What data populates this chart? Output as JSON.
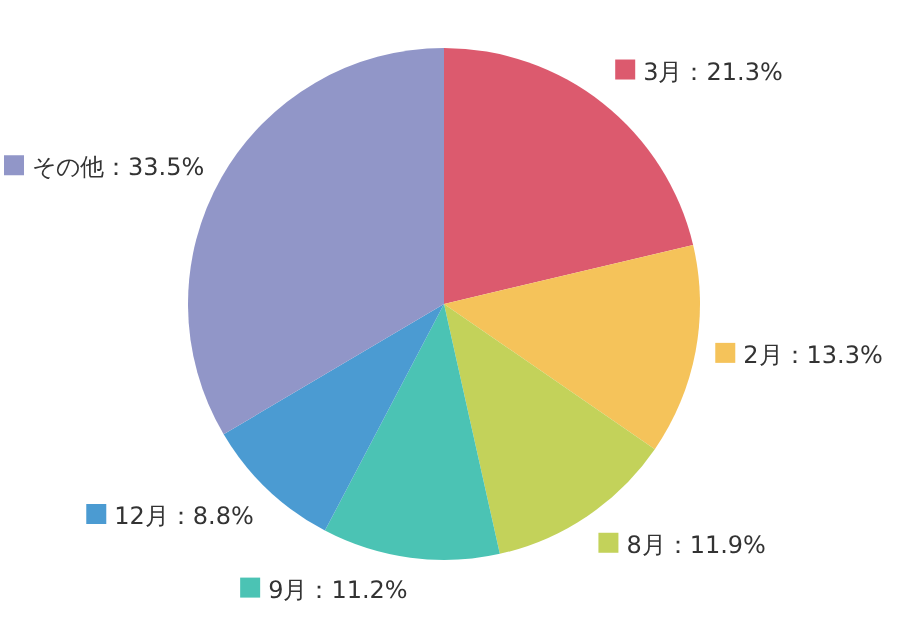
{
  "chart_data": {
    "type": "pie",
    "legend": "right",
    "categories": [
      "3月",
      "2月",
      "8月",
      "9月",
      "12月",
      "その他"
    ],
    "values": [
      21.3,
      13.3,
      11.9,
      11.2,
      8.8,
      33.5
    ],
    "value_labels": [
      "21.3%",
      "13.3%",
      "11.9%",
      "11.2%",
      "8.8%",
      "33.5%"
    ],
    "colors": [
      "#dc5a6e",
      "#f5c35a",
      "#c3d25a",
      "#4bc3b4",
      "#4b9bd2",
      "#9196c8"
    ]
  }
}
